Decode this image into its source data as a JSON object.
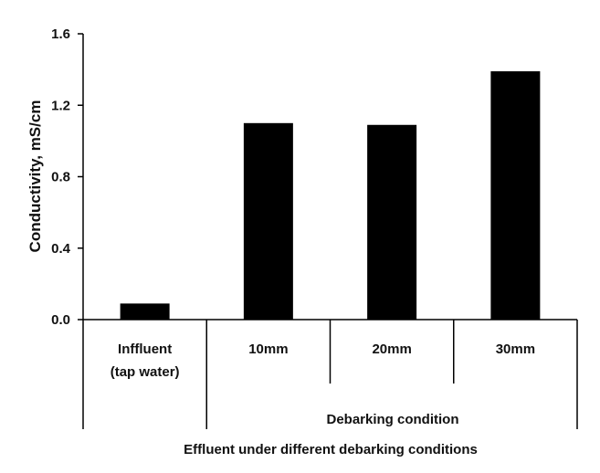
{
  "chart_data": {
    "type": "bar",
    "categories": [
      "Influent (tap water)",
      "10mm",
      "20mm",
      "30mm"
    ],
    "category_lines": [
      [
        "Inffluent",
        "(tap water)"
      ],
      [
        "10mm"
      ],
      [
        "20mm"
      ],
      [
        "30mm"
      ]
    ],
    "values": [
      0.09,
      1.1,
      1.09,
      1.39
    ],
    "ylabel": "Conductivity, mS/cm",
    "ylim": [
      0,
      1.6
    ],
    "yticks": [
      "0.0",
      "0.4",
      "0.8",
      "1.2",
      "1.6"
    ],
    "group_label": "Debarking condition",
    "xlabel": "Effluent under different debarking conditions",
    "bar_color": "#000000",
    "grid": false
  }
}
